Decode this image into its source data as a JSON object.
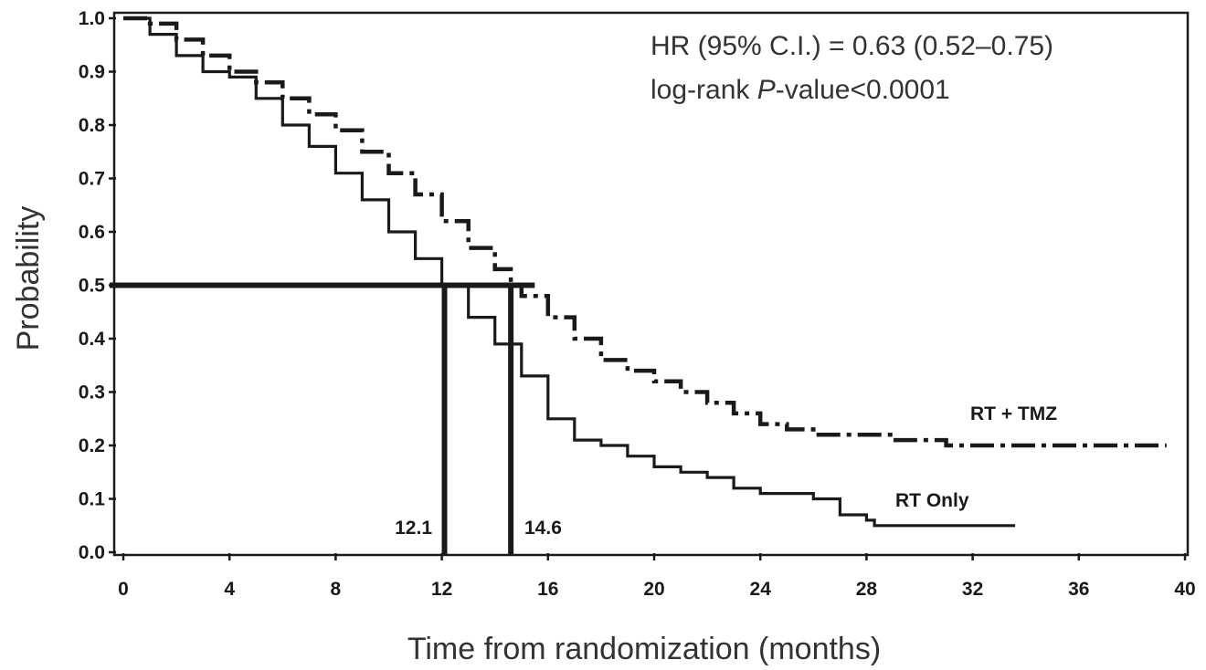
{
  "chart_data": {
    "type": "line",
    "title": "",
    "xlabel": "Time from randomization (months)",
    "ylabel": "Probability",
    "xlim": [
      0,
      40
    ],
    "ylim": [
      0,
      1
    ],
    "x_ticks": [
      0,
      4,
      8,
      12,
      16,
      20,
      24,
      28,
      32,
      36,
      40
    ],
    "x_tick_labels": [
      "0",
      "4",
      "8",
      "12",
      "16",
      "20",
      "24",
      "28",
      "32",
      "36",
      "40"
    ],
    "y_ticks": [
      0,
      0.1,
      0.2,
      0.3,
      0.4,
      0.5,
      0.6,
      0.7,
      0.8,
      0.9,
      1.0
    ],
    "y_tick_labels": [
      "0.0",
      "0.1",
      "0.2",
      "0.3",
      "0.4",
      "0.5",
      "0.6",
      "0.7",
      "0.8",
      "0.9",
      "1.0"
    ],
    "grid": false,
    "legend": "none",
    "annotations": {
      "hr_text": "HR (95% C.I.) = 0.63 (0.52–0.75)",
      "logrank_prefix": "log-rank ",
      "logrank_p": "P",
      "logrank_suffix": "-value<0.0001"
    },
    "median_lines": {
      "y": 0.5,
      "x_left": 0,
      "x_right": 15.5,
      "medians": [
        {
          "value": 12.1,
          "label": "12.1",
          "series": "RT Only"
        },
        {
          "value": 14.6,
          "label": "14.6",
          "series": "RT + TMZ"
        }
      ]
    },
    "series": [
      {
        "name": "RT + TMZ",
        "style": "dashed",
        "color": "#1a1a1a",
        "x": [
          0,
          1,
          2,
          3,
          4,
          5,
          6,
          7,
          8,
          9,
          10,
          11,
          12,
          13,
          14,
          14.6,
          15,
          16,
          17,
          18,
          19,
          20,
          21,
          22,
          23,
          24,
          25,
          26,
          27,
          28,
          29,
          30,
          31,
          32,
          33,
          34,
          35,
          36,
          37,
          38,
          39.3
        ],
        "y": [
          1.0,
          0.99,
          0.96,
          0.93,
          0.9,
          0.88,
          0.85,
          0.82,
          0.79,
          0.75,
          0.71,
          0.67,
          0.62,
          0.57,
          0.53,
          0.5,
          0.48,
          0.44,
          0.4,
          0.36,
          0.34,
          0.32,
          0.3,
          0.28,
          0.26,
          0.24,
          0.23,
          0.22,
          0.22,
          0.22,
          0.21,
          0.21,
          0.2,
          0.2,
          0.2,
          0.2,
          0.2,
          0.2,
          0.2,
          0.2,
          0.2
        ]
      },
      {
        "name": "RT Only",
        "style": "solid",
        "color": "#1a1a1a",
        "x": [
          0,
          1,
          2,
          3,
          4,
          5,
          6,
          7,
          8,
          9,
          10,
          11,
          12,
          13,
          14,
          15,
          16,
          17,
          18,
          19,
          20,
          21,
          22,
          23,
          24,
          25,
          26,
          26.7,
          27,
          28,
          28.3,
          29,
          30,
          31,
          32,
          33,
          33.6
        ],
        "y": [
          1.0,
          0.97,
          0.93,
          0.9,
          0.89,
          0.85,
          0.8,
          0.76,
          0.71,
          0.66,
          0.6,
          0.55,
          0.5,
          0.44,
          0.39,
          0.33,
          0.25,
          0.21,
          0.2,
          0.18,
          0.16,
          0.15,
          0.14,
          0.12,
          0.11,
          0.11,
          0.1,
          0.1,
          0.07,
          0.06,
          0.05,
          0.05,
          0.05,
          0.05,
          0.05,
          0.05,
          0.05
        ]
      }
    ]
  }
}
